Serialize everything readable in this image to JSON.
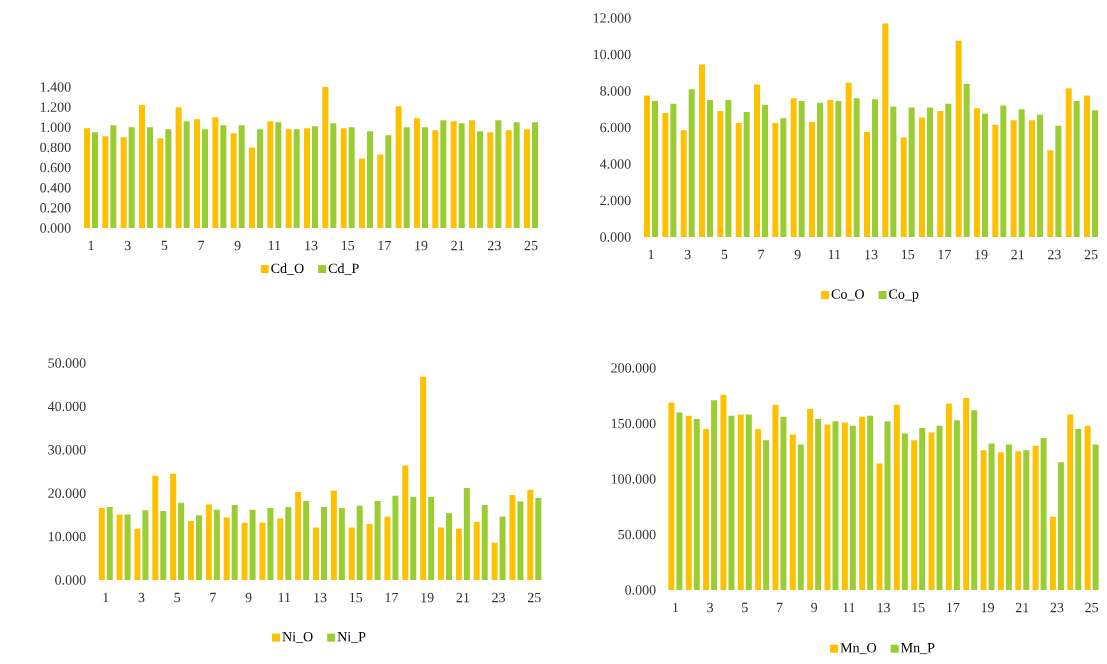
{
  "chart_data": [
    {
      "type": "bar",
      "categories": [
        "1",
        null,
        "3",
        null,
        "5",
        null,
        "7",
        null,
        "9",
        null,
        "11",
        null,
        "13",
        null,
        "15",
        null,
        "17",
        null,
        "19",
        null,
        "21",
        null,
        "23",
        null,
        "25"
      ],
      "ylim": [
        0,
        1.4
      ],
      "yticks": [
        {
          "value": 0,
          "label": "0.000"
        },
        {
          "value": 0.2,
          "label": "0.200"
        },
        {
          "value": 0.4,
          "label": "0.400"
        },
        {
          "value": 0.6,
          "label": "0.600"
        },
        {
          "value": 0.8,
          "label": "0.800"
        },
        {
          "value": 1.0,
          "label": "1.000"
        },
        {
          "value": 1.2,
          "label": "1.200"
        },
        {
          "value": 1.4,
          "label": "1.400"
        }
      ],
      "legend": "bottom",
      "series": [
        {
          "name": "Cd_O",
          "color": "#ffc000",
          "values": [
            0.99,
            0.91,
            0.9,
            1.22,
            0.89,
            1.2,
            1.08,
            1.1,
            0.94,
            0.8,
            1.06,
            0.98,
            0.99,
            1.4,
            0.99,
            0.69,
            0.73,
            1.21,
            1.09,
            0.97,
            1.06,
            1.07,
            0.95,
            0.97,
            0.98
          ]
        },
        {
          "name": "Cd_P",
          "color": "#9acd32",
          "values": [
            0.95,
            1.02,
            1.0,
            1.0,
            0.98,
            1.06,
            0.98,
            1.02,
            1.02,
            0.98,
            1.05,
            0.98,
            1.01,
            1.04,
            1.0,
            0.96,
            0.92,
            1.0,
            1.0,
            1.07,
            1.04,
            0.96,
            1.07,
            1.05,
            1.05
          ]
        }
      ]
    },
    {
      "type": "bar",
      "categories": [
        "1",
        null,
        "3",
        null,
        "5",
        null,
        "7",
        null,
        "9",
        null,
        "11",
        null,
        "13",
        null,
        "15",
        null,
        "17",
        null,
        "19",
        null,
        "21",
        null,
        "23",
        null,
        "25"
      ],
      "ylim": [
        0,
        12
      ],
      "yticks": [
        {
          "value": 0,
          "label": "0.000"
        },
        {
          "value": 2,
          "label": "2.000"
        },
        {
          "value": 4,
          "label": "4.000"
        },
        {
          "value": 6,
          "label": "6.000"
        },
        {
          "value": 8,
          "label": "8.000"
        },
        {
          "value": 10,
          "label": "10.000"
        },
        {
          "value": 12,
          "label": "12.000"
        }
      ],
      "legend": "bottom",
      "series": [
        {
          "name": "Co_O",
          "color": "#ffc000",
          "values": [
            7.75,
            6.8,
            5.85,
            9.45,
            6.9,
            6.25,
            8.35,
            6.25,
            7.6,
            6.3,
            7.5,
            8.45,
            5.75,
            11.7,
            5.45,
            6.55,
            6.9,
            10.75,
            7.05,
            6.15,
            6.4,
            6.4,
            4.75,
            8.15,
            7.75
          ]
        },
        {
          "name": "Co_p",
          "color": "#9acd32",
          "values": [
            7.45,
            7.3,
            8.1,
            7.5,
            7.5,
            6.85,
            7.25,
            6.5,
            7.45,
            7.35,
            7.45,
            7.6,
            7.55,
            7.15,
            7.1,
            7.1,
            7.3,
            8.4,
            6.75,
            7.2,
            7.0,
            6.7,
            6.1,
            7.45,
            6.95
          ]
        }
      ]
    },
    {
      "type": "bar",
      "categories": [
        "1",
        null,
        "3",
        null,
        "5",
        null,
        "7",
        null,
        "9",
        null,
        "11",
        null,
        "13",
        null,
        "15",
        null,
        "17",
        null,
        "19",
        null,
        "21",
        null,
        "23",
        null,
        "25"
      ],
      "ylim": [
        0,
        50
      ],
      "yticks": [
        {
          "value": 0,
          "label": "0.000"
        },
        {
          "value": 10,
          "label": "10.000"
        },
        {
          "value": 20,
          "label": "20.000"
        },
        {
          "value": 30,
          "label": "30.000"
        },
        {
          "value": 40,
          "label": "40.000"
        },
        {
          "value": 50,
          "label": "50.000"
        }
      ],
      "legend": "bottom",
      "series": [
        {
          "name": "Ni_O",
          "color": "#ffc000",
          "values": [
            16.6,
            15.1,
            11.8,
            24.0,
            24.5,
            13.6,
            17.4,
            14.4,
            13.2,
            13.2,
            14.2,
            20.3,
            12.1,
            20.6,
            12.1,
            12.9,
            14.6,
            26.4,
            46.9,
            12.1,
            11.8,
            13.4,
            8.6,
            19.6,
            20.8
          ]
        },
        {
          "name": "Ni_P",
          "color": "#9acd32",
          "values": [
            16.8,
            15.1,
            16.1,
            15.9,
            17.8,
            14.9,
            16.2,
            17.3,
            16.2,
            16.6,
            16.8,
            18.2,
            16.8,
            16.6,
            17.1,
            18.2,
            19.4,
            19.1,
            19.1,
            15.4,
            21.2,
            17.3,
            14.6,
            18.1,
            18.9
          ]
        }
      ]
    },
    {
      "type": "bar",
      "categories": [
        "1",
        null,
        "3",
        null,
        "5",
        null,
        "7",
        null,
        "9",
        null,
        "11",
        null,
        "13",
        null,
        "15",
        null,
        "17",
        null,
        "19",
        null,
        "21",
        null,
        "23",
        null,
        "25"
      ],
      "ylim": [
        0,
        200
      ],
      "yticks": [
        {
          "value": 0,
          "label": "0.000"
        },
        {
          "value": 50,
          "label": "50.000"
        },
        {
          "value": 100,
          "label": "100.000"
        },
        {
          "value": 150,
          "label": "150.000"
        },
        {
          "value": 200,
          "label": "200.000"
        }
      ],
      "legend": "bottom",
      "series": [
        {
          "name": "Mn_O",
          "color": "#ffc000",
          "values": [
            169,
            157,
            145,
            176,
            158,
            145,
            167,
            140,
            163,
            149,
            151,
            156,
            114,
            167,
            135,
            142,
            168,
            173,
            126,
            124,
            125,
            130,
            66,
            158,
            148
          ]
        },
        {
          "name": "Mn_P",
          "color": "#9acd32",
          "values": [
            160,
            154,
            171,
            157,
            158,
            135,
            156,
            131,
            154,
            152,
            148,
            157,
            152,
            141,
            146,
            148,
            153,
            162,
            132,
            131,
            126,
            137,
            115,
            145,
            131
          ]
        }
      ]
    }
  ]
}
